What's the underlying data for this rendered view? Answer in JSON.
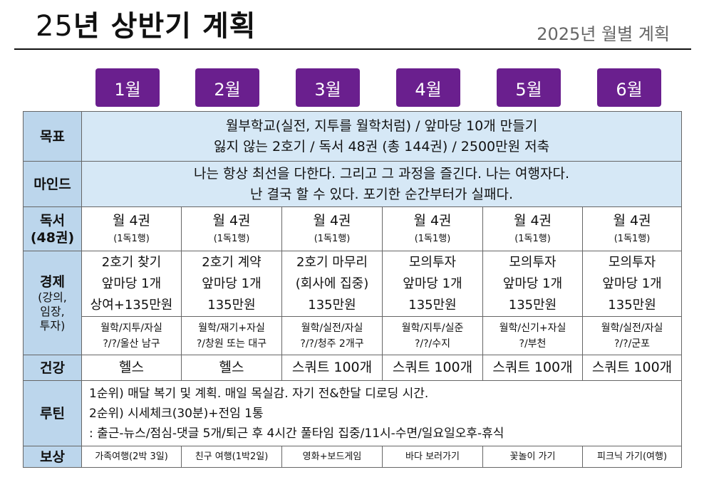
{
  "header": {
    "title_num": "25",
    "title_text": "년 상반기 계획",
    "subtitle": "2025년 월별 계획"
  },
  "months": [
    "1월",
    "2월",
    "3월",
    "4월",
    "5월",
    "6월"
  ],
  "rows": {
    "goal": {
      "label": "목표",
      "line1": "월부학교(실전, 지투를 월학처럼) / 앞마당 10개 만들기",
      "line2": "잃지 않는 2호기 / 독서 48권 (총 144권) / 2500만원 저축"
    },
    "mind": {
      "label": "마인드",
      "line1": "나는 항상 최선을 다한다. 그리고 그 과정을 즐긴다. 나는 여행자다.",
      "line2": "난 결국 할 수 있다. 포기한 순간부터가 실패다."
    },
    "reading": {
      "label": "독서",
      "label_sub": "(48권)",
      "cells": [
        {
          "main": "월 4권",
          "sub": "(1독1행)"
        },
        {
          "main": "월 4권",
          "sub": "(1독1행)"
        },
        {
          "main": "월 4권",
          "sub": "(1독1행)"
        },
        {
          "main": "월 4권",
          "sub": "(1독1행)"
        },
        {
          "main": "월 4권",
          "sub": "(1독1행)"
        },
        {
          "main": "월 4권",
          "sub": "(1독1행)"
        }
      ]
    },
    "economy": {
      "label": "경제",
      "label_sub1": "(강의,",
      "label_sub2": "임장,",
      "label_sub3": "투자)",
      "top": [
        [
          "2호기 찾기",
          "앞마당 1개",
          "상여+135만원"
        ],
        [
          "2호기 계약",
          "앞마당 1개",
          "135만원"
        ],
        [
          "2호기 마무리",
          "(회사에 집중)",
          "135만원"
        ],
        [
          "모의투자",
          "앞마당 1개",
          "135만원"
        ],
        [
          "모의투자",
          "앞마당 1개",
          "135만원"
        ],
        [
          "모의투자",
          "앞마당 1개",
          "135만원"
        ]
      ],
      "bottom": [
        [
          "월학/지투/자실",
          "?/?/울산 남구"
        ],
        [
          "월학/재기+자실",
          "?/창원 또는 대구"
        ],
        [
          "월학/실전/자실",
          "?/?/청주 2개구"
        ],
        [
          "월학/지투/실준",
          "?/?/수지"
        ],
        [
          "월학/신기+자실",
          "?/부천"
        ],
        [
          "월학/실전/자실",
          "?/?/군포"
        ]
      ]
    },
    "health": {
      "label": "건강",
      "cells": [
        "헬스",
        "헬스",
        "스쿼트 100개",
        "스쿼트 100개",
        "스쿼트 100개",
        "스쿼트 100개"
      ]
    },
    "routine": {
      "label": "루틴",
      "line1": "1순위) 매달 복기 및 계획. 매일 목실감. 자기 전&한달 디로딩 시간.",
      "line2": "2순위) 시세체크(30분)+전임 1통",
      "line3": ": 출근-뉴스/점심-댓글 5개/퇴근 후 4시간 풀타임 집중/11시-수면/일요일오후-휴식"
    },
    "reward": {
      "label": "보상",
      "cells": [
        "가족여행(2박 3일)",
        "친구 여행(1박2일)",
        "영화+보드게임",
        "바다 보러가기",
        "꽃놀이 가기",
        "피크닉 가기(여행)"
      ]
    }
  }
}
